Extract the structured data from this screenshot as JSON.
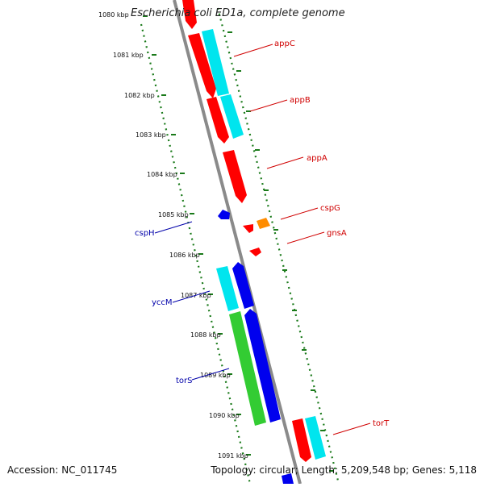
{
  "title": "Escherichia coli ED1a, complete genome",
  "accession": "Accession: NC_011745",
  "topology": "Topology: circular; Length: 5,209,548 bp; Genes: 5,118",
  "kbp_labels": [
    "1080 kbp",
    "1081 kbp",
    "1082 kbp",
    "1083 kbp",
    "1084 kbp",
    "1085 kbp",
    "1086 kbp",
    "1087 kbp",
    "1088 kbp",
    "1089 kbp",
    "1090 kbp",
    "1091 kbp"
  ],
  "gene_labels": [
    "appC",
    "appB",
    "appA",
    "cspG",
    "gnsA",
    "cspH",
    "yccM",
    "torS",
    "torT"
  ],
  "colors": {
    "backbone": "#8a8a8a",
    "ticks": "#1a7a1a",
    "red": "#ff0000",
    "cyan": "#00e5ee",
    "blue": "#0000ee",
    "green": "#33cc33",
    "orange": "#ff8c00",
    "label_red": "#d00000",
    "label_blue": "#0000aa"
  }
}
